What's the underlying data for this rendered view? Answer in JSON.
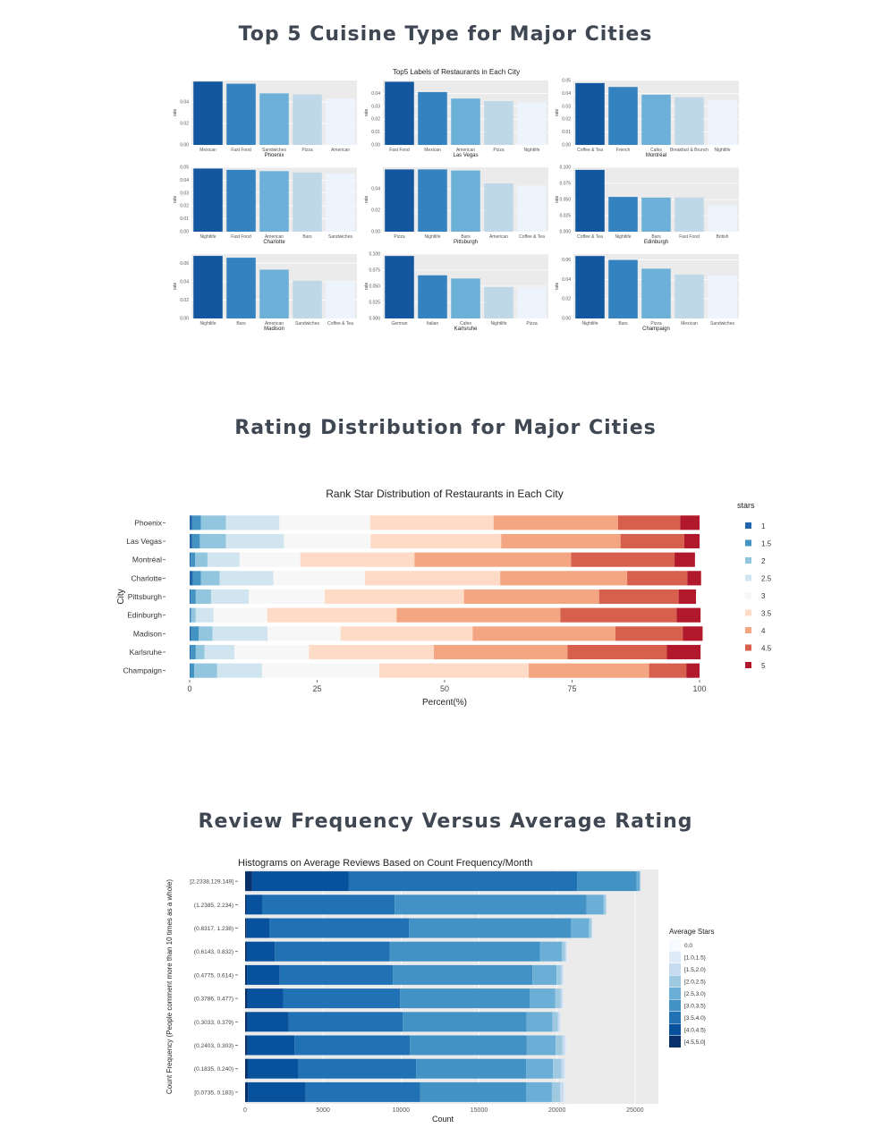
{
  "sections": {
    "s1_title": "Top 5 Cuisine Type for Major Cities",
    "s2_title": "Rating Distribution for Major Cities",
    "s3_title": "Review Frequency Versus Average Rating"
  },
  "colors": {
    "blues5": [
      "#1357a0",
      "#3483c0",
      "#6cb0d8",
      "#bed8e8",
      "#eef4fd"
    ],
    "rdbu9": [
      "#2166ac",
      "#4393c3",
      "#92c5de",
      "#d1e5f0",
      "#f7f7f7",
      "#fddbc7",
      "#f4a582",
      "#d6604d",
      "#b2182b"
    ],
    "blues9": [
      "#f7fbff",
      "#deebf7",
      "#c6dbef",
      "#9ecae1",
      "#6baed6",
      "#4292c6",
      "#2171b5",
      "#08519c",
      "#08306b"
    ],
    "panel_bg": "#ebebeb"
  },
  "chart_data": [
    {
      "type": "bar",
      "title": "Top5 Labels of Restaurants in Each City",
      "ylabel": "rate",
      "panels": [
        {
          "city": "Phoenix",
          "categories": [
            "Mexican",
            "Fast Food",
            "Sandwiches",
            "Pizza",
            "American"
          ],
          "values": [
            0.059,
            0.057,
            0.048,
            0.047,
            0.043
          ],
          "yticks": [
            0.0,
            0.02,
            0.04
          ],
          "ytick_labels": [
            "0.00",
            "0.02",
            "0.04"
          ],
          "ylim": [
            0,
            0.06
          ]
        },
        {
          "city": "Las Vegas",
          "categories": [
            "Fast Food",
            "Mexican",
            "American",
            "Pizza",
            "Nightlife"
          ],
          "values": [
            0.049,
            0.041,
            0.036,
            0.034,
            0.033
          ],
          "yticks": [
            0.0,
            0.01,
            0.02,
            0.03,
            0.04
          ],
          "ytick_labels": [
            "0.00",
            "0.01",
            "0.02",
            "0.03",
            "0.04"
          ],
          "ylim": [
            0,
            0.05
          ]
        },
        {
          "city": "Montréal",
          "categories": [
            "Coffee & Tea",
            "French",
            "Cafes",
            "Breakfast & Brunch",
            "Nightlife"
          ],
          "values": [
            0.048,
            0.045,
            0.039,
            0.037,
            0.035
          ],
          "yticks": [
            0.0,
            0.01,
            0.02,
            0.03,
            0.04,
            0.05
          ],
          "ytick_labels": [
            "0.00",
            "0.01",
            "0.02",
            "0.03",
            "0.04",
            "0.05"
          ],
          "ylim": [
            0,
            0.05
          ]
        },
        {
          "city": "Charlotte",
          "categories": [
            "Nightlife",
            "Fast Food",
            "American",
            "Bars",
            "Sandwiches"
          ],
          "values": [
            0.049,
            0.048,
            0.047,
            0.046,
            0.045
          ],
          "yticks": [
            0.0,
            0.01,
            0.02,
            0.03,
            0.04,
            0.05
          ],
          "ytick_labels": [
            "0.00",
            "0.01",
            "0.02",
            "0.03",
            "0.04",
            "0.05"
          ],
          "ylim": [
            0,
            0.05
          ]
        },
        {
          "city": "Pittsburgh",
          "categories": [
            "Pizza",
            "Nightlife",
            "Bars",
            "American",
            "Coffee & Tea"
          ],
          "values": [
            0.058,
            0.058,
            0.057,
            0.045,
            0.043
          ],
          "yticks": [
            0.0,
            0.02,
            0.04
          ],
          "ytick_labels": [
            "0.00",
            "0.02",
            "0.04"
          ],
          "ylim": [
            0,
            0.06
          ]
        },
        {
          "city": "Edinburgh",
          "categories": [
            "Coffee & Tea",
            "Nightlife",
            "Bars",
            "Fast Food",
            "British"
          ],
          "values": [
            0.096,
            0.054,
            0.053,
            0.053,
            0.041
          ],
          "yticks": [
            0.0,
            0.025,
            0.05,
            0.075,
            0.1
          ],
          "ytick_labels": [
            "0.000",
            "0.025",
            "0.050",
            "0.075",
            "0.100"
          ],
          "ylim": [
            0,
            0.1
          ]
        },
        {
          "city": "Madison",
          "categories": [
            "Nightlife",
            "Bars",
            "American",
            "Sandwiches",
            "Coffee & Tea"
          ],
          "values": [
            0.068,
            0.066,
            0.053,
            0.041,
            0.04
          ],
          "yticks": [
            0.0,
            0.02,
            0.04,
            0.06
          ],
          "ytick_labels": [
            "0.00",
            "0.02",
            "0.04",
            "0.06"
          ],
          "ylim": [
            0,
            0.07
          ]
        },
        {
          "city": "Karlsruhe",
          "categories": [
            "German",
            "Italian",
            "Cafes",
            "Nightlife",
            "Pizza"
          ],
          "values": [
            0.097,
            0.067,
            0.062,
            0.049,
            0.048
          ],
          "yticks": [
            0.0,
            0.025,
            0.05,
            0.075,
            0.1
          ],
          "ytick_labels": [
            "0.000",
            "0.025",
            "0.050",
            "0.075",
            "0.100"
          ],
          "ylim": [
            0,
            0.1
          ]
        },
        {
          "city": "Champaign",
          "categories": [
            "Nightlife",
            "Bars",
            "Pizza",
            "Mexican",
            "Sandwiches"
          ],
          "values": [
            0.064,
            0.06,
            0.051,
            0.045,
            0.044
          ],
          "yticks": [
            0.0,
            0.02,
            0.04,
            0.06
          ],
          "ytick_labels": [
            "0.00",
            "0.02",
            "0.04",
            "0.06"
          ],
          "ylim": [
            0,
            0.066
          ]
        }
      ]
    },
    {
      "type": "bar",
      "orientation": "horizontal-stacked",
      "title": "Rank Star Distribution of Restaurants in Each City",
      "xlabel": "Percent(%)",
      "ylabel": "City",
      "xlim": [
        0,
        100
      ],
      "xticks": [
        0,
        25,
        50,
        75,
        100
      ],
      "legend_title": "stars",
      "legend": [
        "1",
        "1.5",
        "2",
        "2.5",
        "3",
        "3.5",
        "4",
        "4.5",
        "5"
      ],
      "legend_position": "right",
      "categories": [
        "Phoenix",
        "Las Vegas",
        "Montréal",
        "Charlotte",
        "Pittsburgh",
        "Edinburgh",
        "Madison",
        "Karlsruhe",
        "Champaign"
      ],
      "rows": [
        [
          0.5,
          1.7,
          4.9,
          10.5,
          17.8,
          24.2,
          24.4,
          12.2,
          3.8
        ],
        [
          0.5,
          1.5,
          5.1,
          11.4,
          17.0,
          25.6,
          23.4,
          12.5,
          3.0
        ],
        [
          0.2,
          0.9,
          2.4,
          6.3,
          11.9,
          22.4,
          30.7,
          20.3,
          4.0
        ],
        [
          0.6,
          1.6,
          3.7,
          10.5,
          18.0,
          26.5,
          24.9,
          11.8,
          2.7
        ],
        [
          0.2,
          1.0,
          3.0,
          7.4,
          14.9,
          27.3,
          26.5,
          15.6,
          3.4
        ],
        [
          0.1,
          0.2,
          0.9,
          3.5,
          10.5,
          25.4,
          32.1,
          22.8,
          4.7
        ],
        [
          0.3,
          1.5,
          2.7,
          10.8,
          14.3,
          25.9,
          28.0,
          13.2,
          3.9
        ],
        [
          0.2,
          1.0,
          1.7,
          5.9,
          14.6,
          24.5,
          26.2,
          19.5,
          6.6
        ],
        [
          0.1,
          0.8,
          4.5,
          8.8,
          23.0,
          29.3,
          23.6,
          7.3,
          2.6
        ]
      ]
    },
    {
      "type": "bar",
      "orientation": "horizontal-stacked",
      "title": "Histograms on Average Reviews Based on Count Frequency/Month",
      "xlabel": "Count",
      "ylabel": "Count Frequency (People comment more than 10 times as a whole)",
      "xlim": [
        0,
        26500
      ],
      "xticks": [
        0,
        5000,
        10000,
        15000,
        20000,
        25000
      ],
      "legend_title": "Average Stars",
      "legend": [
        "0.0",
        "[1.0,1.5)",
        "[1.5,2.0)",
        "[2.0,2.5)",
        "[2.5,3.0)",
        "[3.0,3.5)",
        "[3.5,4.0)",
        "[4.0,4.5)",
        "[4.5,5.0]"
      ],
      "legend_position": "right",
      "categories": [
        "[2.2338,129.149]",
        "(1.2385,  2.234)",
        "(0.8317,  1.238)",
        "(0.6143,  0.832)",
        "(0.4775,  0.614)",
        "(0.3786,  0.477)",
        "(0.3033,  0.379)",
        "(0.2403,  0.303)",
        "(0.1835,  0.240)",
        "[0.0735,  0.183)"
      ],
      "rows": [
        [
          0,
          10,
          25,
          45,
          200,
          3800,
          14650,
          6200,
          450
        ],
        [
          0,
          20,
          55,
          125,
          1100,
          12300,
          8500,
          1000,
          90
        ],
        [
          0,
          30,
          70,
          150,
          1150,
          10400,
          8950,
          1450,
          100
        ],
        [
          0,
          40,
          90,
          210,
          1400,
          9650,
          7350,
          1800,
          110
        ],
        [
          0,
          50,
          110,
          300,
          1550,
          8950,
          7250,
          2100,
          120
        ],
        [
          0,
          60,
          120,
          350,
          1650,
          8300,
          7500,
          2300,
          140
        ],
        [
          0,
          70,
          130,
          350,
          1650,
          7950,
          7300,
          2650,
          150
        ],
        [
          0,
          80,
          170,
          430,
          1850,
          7500,
          7400,
          3000,
          160
        ],
        [
          0,
          100,
          180,
          550,
          1720,
          7050,
          7550,
          3250,
          170
        ],
        [
          0,
          100,
          210,
          530,
          1640,
          6800,
          7350,
          3700,
          180
        ]
      ]
    }
  ]
}
